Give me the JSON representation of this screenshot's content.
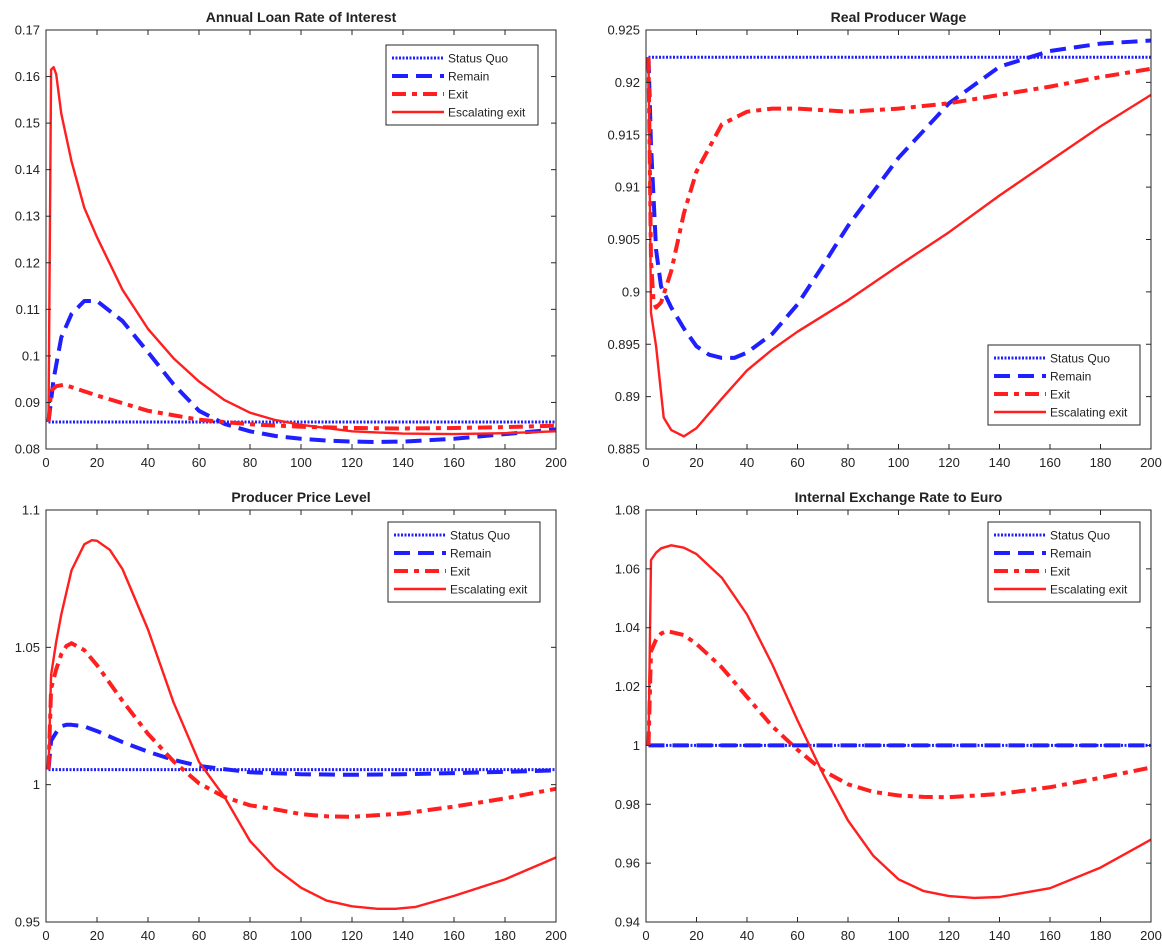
{
  "colors": {
    "status_quo": "#1f1fff",
    "remain": "#1f1fff",
    "exit": "#ff1f1f",
    "escalating": "#ff1f1f",
    "axis": "#262626"
  },
  "chart_data": [
    {
      "type": "line",
      "title": "Annual Loan Rate of Interest",
      "xlim": [
        0,
        200
      ],
      "ylim": [
        0.08,
        0.17
      ],
      "xticks": [
        0,
        20,
        40,
        60,
        80,
        100,
        120,
        140,
        160,
        180,
        200
      ],
      "yticks": [
        0.08,
        0.09,
        0.1,
        0.11,
        0.12,
        0.13,
        0.14,
        0.15,
        0.16,
        0.17
      ],
      "xtick_labels": [
        "0",
        "20",
        "40",
        "60",
        "80",
        "100",
        "120",
        "140",
        "160",
        "180",
        "200"
      ],
      "ytick_labels": [
        "0.08",
        "0.09",
        "0.1",
        "0.11",
        "0.12",
        "0.13",
        "0.14",
        "0.15",
        "0.16",
        "0.17"
      ],
      "legend_position": "top-right",
      "series": [
        {
          "name": "Status Quo",
          "style": "dotted",
          "x": [
            1,
            200
          ],
          "y": [
            0.0858,
            0.0858
          ]
        },
        {
          "name": "Remain",
          "style": "dashed",
          "x": [
            1,
            3,
            6,
            10,
            15,
            20,
            30,
            40,
            50,
            60,
            70,
            80,
            90,
            100,
            110,
            120,
            130,
            140,
            160,
            180,
            200
          ],
          "y": [
            0.0858,
            0.095,
            0.104,
            0.109,
            0.1118,
            0.1118,
            0.1075,
            0.1008,
            0.0939,
            0.0882,
            0.0854,
            0.0838,
            0.0828,
            0.0822,
            0.0818,
            0.0816,
            0.0815,
            0.0816,
            0.0822,
            0.0832,
            0.0842
          ]
        },
        {
          "name": "Exit",
          "style": "dashdot",
          "x": [
            1,
            2,
            4,
            7,
            10,
            20,
            40,
            60,
            80,
            100,
            120,
            140,
            160,
            180,
            200
          ],
          "y": [
            0.0858,
            0.0925,
            0.0935,
            0.0938,
            0.0933,
            0.0915,
            0.0882,
            0.0863,
            0.0853,
            0.0848,
            0.0845,
            0.0844,
            0.0845,
            0.0847,
            0.085
          ]
        },
        {
          "name": "Escalating exit",
          "style": "solid",
          "x": [
            1,
            2,
            3,
            4,
            6,
            10,
            15,
            20,
            30,
            40,
            50,
            60,
            70,
            80,
            90,
            100,
            120,
            140,
            160,
            180,
            200
          ],
          "y": [
            0.0858,
            0.1615,
            0.162,
            0.1605,
            0.152,
            0.1418,
            0.1318,
            0.1255,
            0.1142,
            0.1058,
            0.0995,
            0.0945,
            0.0905,
            0.0878,
            0.0862,
            0.0852,
            0.0838,
            0.0833,
            0.0832,
            0.0834,
            0.0838
          ]
        }
      ]
    },
    {
      "type": "line",
      "title": "Real Producer Wage",
      "xlim": [
        0,
        200
      ],
      "ylim": [
        0.885,
        0.925
      ],
      "xticks": [
        0,
        20,
        40,
        60,
        80,
        100,
        120,
        140,
        160,
        180,
        200
      ],
      "yticks": [
        0.885,
        0.89,
        0.895,
        0.9,
        0.905,
        0.91,
        0.915,
        0.92,
        0.925
      ],
      "xtick_labels": [
        "0",
        "20",
        "40",
        "60",
        "80",
        "100",
        "120",
        "140",
        "160",
        "180",
        "200"
      ],
      "ytick_labels": [
        "0.885",
        "0.89",
        "0.895",
        "0.9",
        "0.905",
        "0.91",
        "0.915",
        "0.92",
        "0.925"
      ],
      "legend_position": "bottom-right",
      "series": [
        {
          "name": "Status Quo",
          "style": "dotted",
          "x": [
            1,
            200
          ],
          "y": [
            0.9224,
            0.9224
          ]
        },
        {
          "name": "Remain",
          "style": "dashed",
          "x": [
            1,
            2,
            4,
            6,
            10,
            15,
            20,
            25,
            30,
            35,
            40,
            50,
            60,
            70,
            80,
            100,
            120,
            140,
            160,
            180,
            200
          ],
          "y": [
            0.9224,
            0.914,
            0.904,
            0.9005,
            0.8985,
            0.8965,
            0.8948,
            0.894,
            0.8937,
            0.8937,
            0.8942,
            0.896,
            0.8988,
            0.9025,
            0.9063,
            0.9128,
            0.918,
            0.9215,
            0.923,
            0.9237,
            0.924
          ]
        },
        {
          "name": "Exit",
          "style": "dashdot",
          "x": [
            1,
            2,
            3,
            4,
            6,
            10,
            15,
            20,
            30,
            40,
            50,
            60,
            80,
            100,
            120,
            140,
            160,
            180,
            200
          ],
          "y": [
            0.9224,
            0.903,
            0.899,
            0.8985,
            0.899,
            0.902,
            0.9075,
            0.9115,
            0.916,
            0.9172,
            0.9175,
            0.9175,
            0.9172,
            0.9175,
            0.918,
            0.9188,
            0.9196,
            0.9205,
            0.9213
          ]
        },
        {
          "name": "Escalating exit",
          "style": "solid",
          "x": [
            1,
            2,
            4,
            7,
            10,
            15,
            20,
            30,
            40,
            50,
            60,
            80,
            100,
            120,
            140,
            160,
            180,
            200
          ],
          "y": [
            0.9224,
            0.898,
            0.8948,
            0.888,
            0.8868,
            0.8862,
            0.887,
            0.8898,
            0.8925,
            0.8945,
            0.8962,
            0.8992,
            0.9025,
            0.9057,
            0.9092,
            0.9125,
            0.9158,
            0.9188
          ]
        }
      ]
    },
    {
      "type": "line",
      "title": "Producer Price Level",
      "xlim": [
        0,
        200
      ],
      "ylim": [
        0.95,
        1.1
      ],
      "xticks": [
        0,
        20,
        40,
        60,
        80,
        100,
        120,
        140,
        160,
        180,
        200
      ],
      "yticks": [
        0.95,
        1,
        1.05,
        1.1
      ],
      "xtick_labels": [
        "0",
        "20",
        "40",
        "60",
        "80",
        "100",
        "120",
        "140",
        "160",
        "180",
        "200"
      ],
      "ytick_labels": [
        "0.95",
        "1",
        "1.05",
        "1.1"
      ],
      "legend_position": "top-right",
      "series": [
        {
          "name": "Status Quo",
          "style": "dotted",
          "x": [
            1,
            200
          ],
          "y": [
            1.0055,
            1.0055
          ]
        },
        {
          "name": "Remain",
          "style": "dashed",
          "x": [
            1,
            2,
            4,
            6,
            8,
            10,
            15,
            20,
            30,
            40,
            50,
            60,
            80,
            100,
            120,
            140,
            160,
            180,
            200
          ],
          "y": [
            1.0055,
            1.016,
            1.019,
            1.0213,
            1.0218,
            1.0218,
            1.0212,
            1.0195,
            1.0155,
            1.012,
            1.009,
            1.0068,
            1.0045,
            1.0038,
            1.0036,
            1.0038,
            1.0042,
            1.0047,
            1.0052
          ]
        },
        {
          "name": "Exit",
          "style": "dashdot",
          "x": [
            1,
            2,
            4,
            6,
            8,
            10,
            15,
            20,
            30,
            40,
            50,
            60,
            70,
            80,
            90,
            100,
            110,
            120,
            140,
            160,
            180,
            200
          ],
          "y": [
            1.0055,
            1.035,
            1.042,
            1.0475,
            1.0505,
            1.0515,
            1.049,
            1.0435,
            1.0305,
            1.0185,
            1.0085,
            1.0005,
            0.9955,
            0.9925,
            0.991,
            0.9893,
            0.9885,
            0.9883,
            0.9895,
            0.992,
            0.995,
            0.9985
          ]
        },
        {
          "name": "Escalating exit",
          "style": "solid",
          "x": [
            1,
            2,
            4,
            6,
            10,
            15,
            18,
            20,
            25,
            30,
            40,
            50,
            60,
            70,
            80,
            90,
            100,
            110,
            120,
            130,
            137,
            145,
            160,
            180,
            200
          ],
          "y": [
            1.0055,
            1.04,
            1.052,
            1.062,
            1.078,
            1.0875,
            1.089,
            1.0888,
            1.0855,
            1.0785,
            1.0565,
            1.03,
            1.0083,
            0.9955,
            0.9795,
            0.9695,
            0.9625,
            0.9578,
            0.9557,
            0.9548,
            0.9548,
            0.9555,
            0.9595,
            0.9655,
            0.9735
          ]
        }
      ]
    },
    {
      "type": "line",
      "title": "Internal Exchange Rate to Euro",
      "xlim": [
        0,
        200
      ],
      "ylim": [
        0.94,
        1.08
      ],
      "xticks": [
        0,
        20,
        40,
        60,
        80,
        100,
        120,
        140,
        160,
        180,
        200
      ],
      "yticks": [
        0.94,
        0.96,
        0.98,
        1,
        1.02,
        1.04,
        1.06,
        1.08
      ],
      "xtick_labels": [
        "0",
        "20",
        "40",
        "60",
        "80",
        "100",
        "120",
        "140",
        "160",
        "180",
        "200"
      ],
      "ytick_labels": [
        "0.94",
        "0.96",
        "0.98",
        "1",
        "1.02",
        "1.04",
        "1.06",
        "1.08"
      ],
      "legend_position": "top-right",
      "series": [
        {
          "name": "Status Quo",
          "style": "dotted",
          "x": [
            1,
            200
          ],
          "y": [
            1.0,
            1.0
          ]
        },
        {
          "name": "Remain",
          "style": "dashed",
          "x": [
            1,
            200
          ],
          "y": [
            1.0,
            1.0
          ]
        },
        {
          "name": "Exit",
          "style": "dashdot",
          "x": [
            1,
            2,
            4,
            6,
            8,
            10,
            15,
            20,
            30,
            40,
            50,
            60,
            70,
            80,
            90,
            100,
            110,
            120,
            140,
            160,
            180,
            200
          ],
          "y": [
            1.0,
            1.032,
            1.036,
            1.038,
            1.0388,
            1.0385,
            1.0375,
            1.0345,
            1.0265,
            1.0165,
            1.0065,
            0.9985,
            0.9915,
            0.9868,
            0.9842,
            0.983,
            0.9825,
            0.9824,
            0.9835,
            0.9858,
            0.989,
            0.9925
          ]
        },
        {
          "name": "Escalating exit",
          "style": "solid",
          "x": [
            1,
            2,
            4,
            6,
            10,
            15,
            20,
            30,
            40,
            50,
            60,
            70,
            80,
            90,
            100,
            110,
            120,
            130,
            140,
            160,
            180,
            200
          ],
          "y": [
            1.0,
            1.063,
            1.0655,
            1.067,
            1.068,
            1.0672,
            1.065,
            1.057,
            1.0445,
            1.0275,
            1.0085,
            0.9905,
            0.9745,
            0.9625,
            0.9545,
            0.9505,
            0.9488,
            0.9482,
            0.9485,
            0.9515,
            0.9585,
            0.968
          ]
        }
      ]
    }
  ]
}
